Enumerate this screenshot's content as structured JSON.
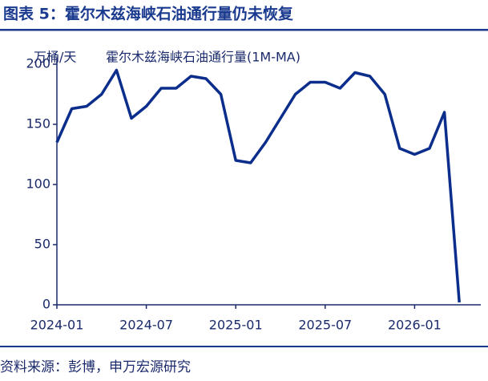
{
  "chart_data": {
    "type": "line",
    "title": "图表 5：霍尔木兹海峡石油通行量仍未恢复",
    "y_label": "万桶/天",
    "source": "资料来源：彭博，申万宏源研究",
    "x": [
      "2024-01",
      "2024-02",
      "2024-03",
      "2024-04",
      "2024-05",
      "2024-06",
      "2024-07",
      "2024-08",
      "2024-09",
      "2024-10",
      "2024-11",
      "2024-12",
      "2025-01",
      "2025-02",
      "2025-03",
      "2025-04",
      "2025-05",
      "2025-06",
      "2025-07",
      "2025-08",
      "2025-09",
      "2025-10",
      "2025-11",
      "2025-12",
      "2026-01",
      "2026-02",
      "2026-03",
      "2026-04"
    ],
    "series": [
      {
        "name": "霍尔木兹海峡石油通行量(1M-MA)",
        "color": "#0b2d8c",
        "values": [
          135,
          163,
          165,
          175,
          195,
          155,
          165,
          180,
          180,
          190,
          188,
          175,
          120,
          118,
          135,
          155,
          175,
          185,
          185,
          180,
          193,
          190,
          175,
          130,
          125,
          130,
          160,
          2
        ]
      }
    ],
    "xticks": [
      "2024-01",
      "2024-07",
      "2025-01",
      "2025-07",
      "2026-01"
    ],
    "ylim": [
      0,
      200
    ],
    "yticks": [
      0,
      50,
      100,
      150,
      200
    ]
  }
}
